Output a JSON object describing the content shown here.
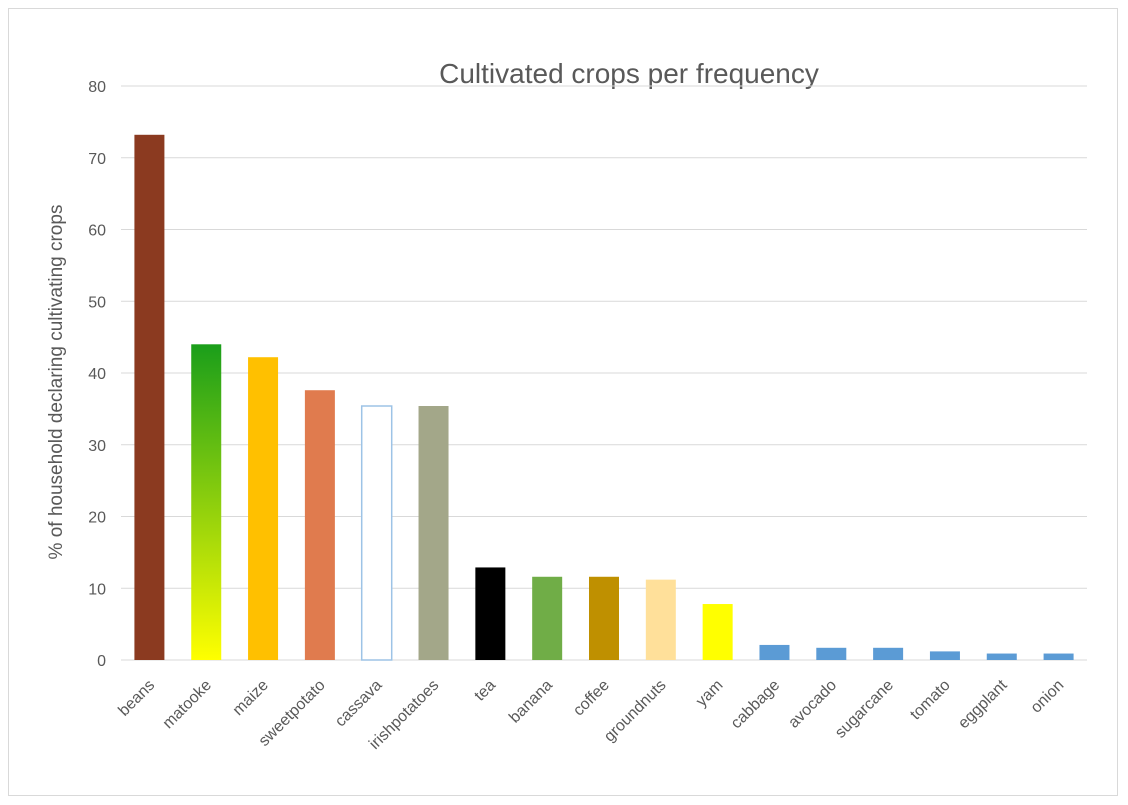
{
  "chart_data": {
    "type": "bar",
    "title": "Cultivated crops per frequency",
    "xlabel": "",
    "ylabel": "% of household declaring cultivating crops",
    "ylim": [
      0,
      80
    ],
    "yticks": [
      0,
      10,
      20,
      30,
      40,
      50,
      60,
      70,
      80
    ],
    "grid": true,
    "legend": "none",
    "categories": [
      "beans",
      "matooke",
      "maize",
      "sweetpotato",
      "cassava",
      "irishpotatoes",
      "tea",
      "banana",
      "coffee",
      "groundnuts",
      "yam",
      "cabbage",
      "avocado",
      "sugarcane",
      "tomato",
      "eggplant",
      "onion"
    ],
    "values": [
      73.2,
      44.0,
      42.2,
      37.6,
      35.4,
      35.4,
      12.9,
      11.6,
      11.6,
      11.2,
      7.8,
      2.1,
      1.7,
      1.7,
      1.2,
      0.9,
      0.9
    ],
    "colors": [
      "#8B3A20",
      "gradient:#1a9e1a-#ffff00",
      "#FFC000",
      "#E07B4E",
      "outline:#9DC3E6",
      "#A3A789",
      "#000000",
      "#70AD47",
      "#BF9000",
      "#FFE09A",
      "#FFFF00",
      "#5B9BD5",
      "#5B9BD5",
      "#5B9BD5",
      "#5B9BD5",
      "#5B9BD5",
      "#5B9BD5"
    ]
  }
}
